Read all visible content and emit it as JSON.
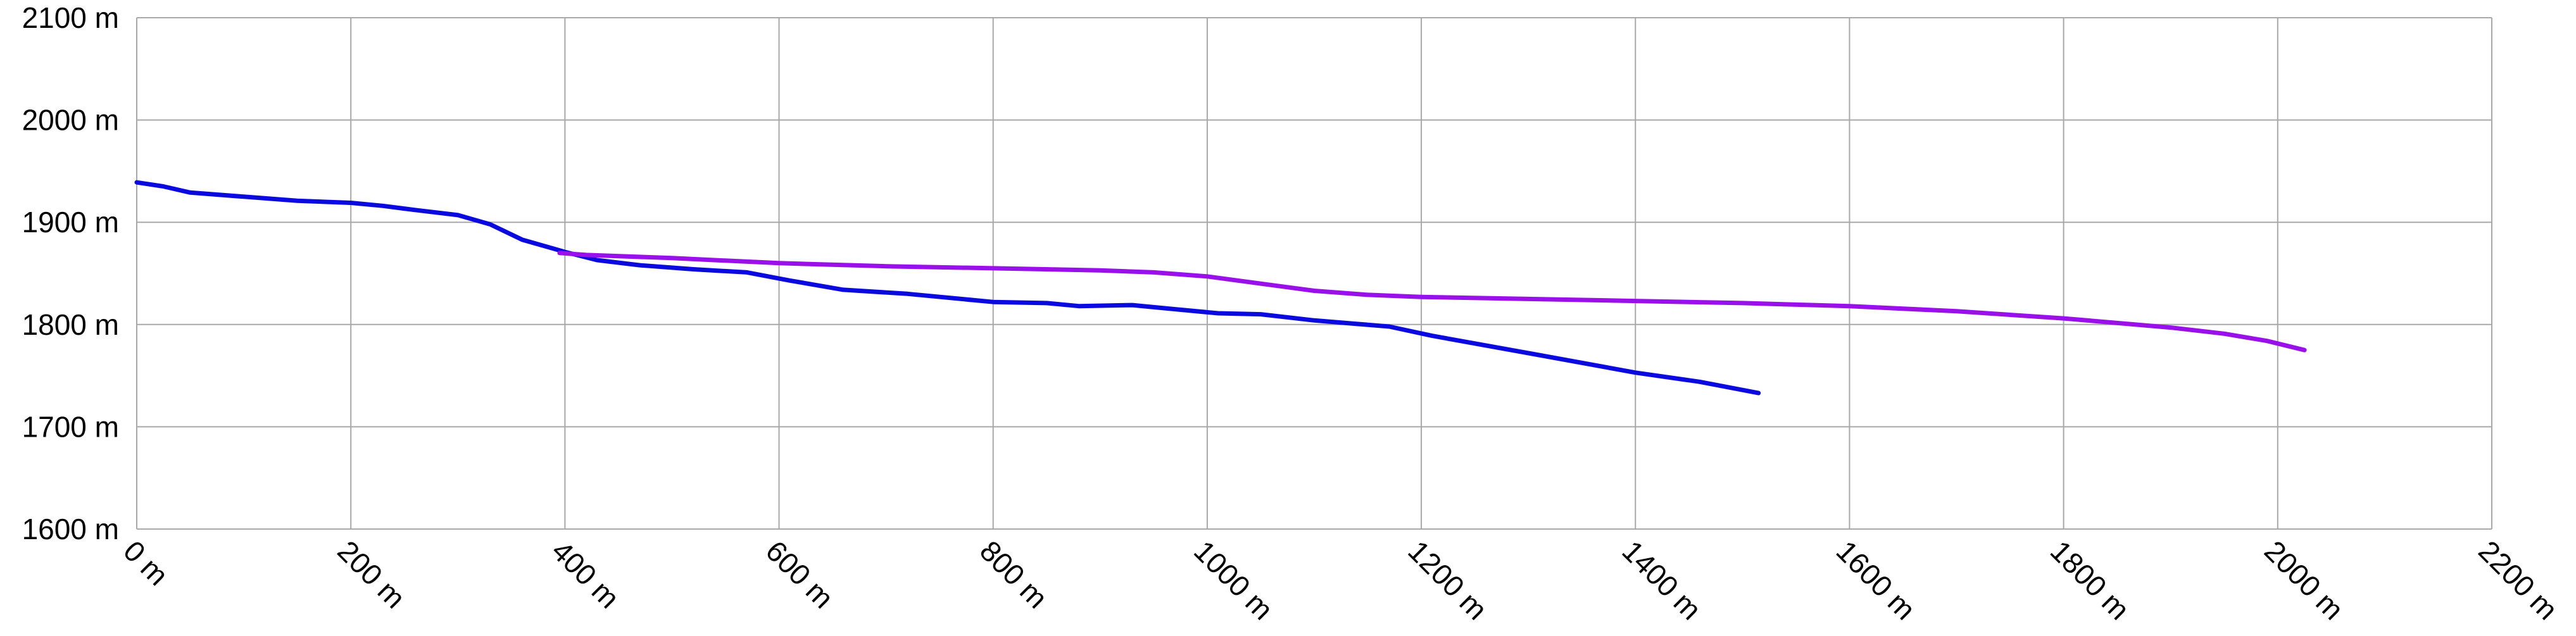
{
  "chart_data": {
    "type": "line",
    "title": "",
    "xlabel": "",
    "ylabel": "",
    "x_unit": " m",
    "y_unit": " m",
    "xlim": [
      0,
      2200
    ],
    "ylim": [
      1600,
      2100
    ],
    "x_ticks": [
      0,
      200,
      400,
      600,
      800,
      1000,
      1200,
      1400,
      1600,
      1800,
      2000,
      2200
    ],
    "y_ticks": [
      1600,
      1700,
      1800,
      1900,
      2000,
      2100
    ],
    "x_tick_labels": [
      "0 m",
      "200 m",
      "400 m",
      "600 m",
      "800 m",
      "1000 m",
      "1200 m",
      "1400 m",
      "1600 m",
      "1800 m",
      "2000 m",
      "2200 m"
    ],
    "y_tick_labels": [
      "1600 m",
      "1700 m",
      "1800 m",
      "1900 m",
      "2000 m",
      "2100 m"
    ],
    "grid": true,
    "legend": "none",
    "series": [
      {
        "color": "#0a0ae0",
        "x": [
          0,
          25,
          50,
          100,
          150,
          200,
          230,
          260,
          300,
          330,
          360,
          400,
          430,
          470,
          520,
          570,
          610,
          660,
          720,
          800,
          850,
          880,
          930,
          970,
          1010,
          1050,
          1100,
          1170,
          1210,
          1300,
          1400,
          1460,
          1515
        ],
        "y": [
          1939,
          1935,
          1929,
          1925,
          1921,
          1919,
          1916,
          1912,
          1907,
          1898,
          1883,
          1871,
          1863,
          1858,
          1854,
          1851,
          1843,
          1834,
          1830,
          1822,
          1821,
          1818,
          1819,
          1815,
          1811,
          1810,
          1804,
          1798,
          1789,
          1772,
          1753,
          1744,
          1733
        ]
      },
      {
        "color": "#9a10ea",
        "x": [
          395,
          420,
          500,
          600,
          700,
          800,
          900,
          950,
          1000,
          1050,
          1100,
          1150,
          1200,
          1300,
          1400,
          1500,
          1600,
          1700,
          1800,
          1900,
          1950,
          1990,
          2025
        ],
        "y": [
          1870,
          1868,
          1865,
          1860,
          1857,
          1855,
          1853,
          1851,
          1847,
          1840,
          1833,
          1829,
          1827,
          1825,
          1823,
          1821,
          1818,
          1813,
          1806,
          1797,
          1791,
          1784,
          1775
        ]
      }
    ]
  }
}
